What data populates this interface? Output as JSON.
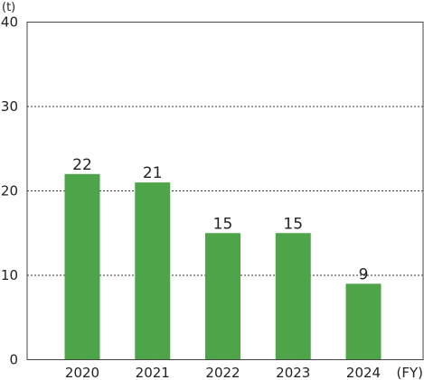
{
  "chart_data": {
    "type": "bar",
    "title": "",
    "ylabel": "(t)",
    "xlabel": "(FY)",
    "categories": [
      "2020",
      "2021",
      "2022",
      "2023",
      "2024"
    ],
    "values": [
      22,
      21,
      15,
      15,
      9
    ],
    "data_labels": [
      "22",
      "21",
      "15",
      "15",
      "9"
    ],
    "yticks": [
      "0",
      "10",
      "20",
      "30",
      "40"
    ],
    "ylim": [
      0,
      40
    ],
    "grid": "horizontal dotted",
    "bar_color": "#4ea448",
    "legend": "none"
  }
}
